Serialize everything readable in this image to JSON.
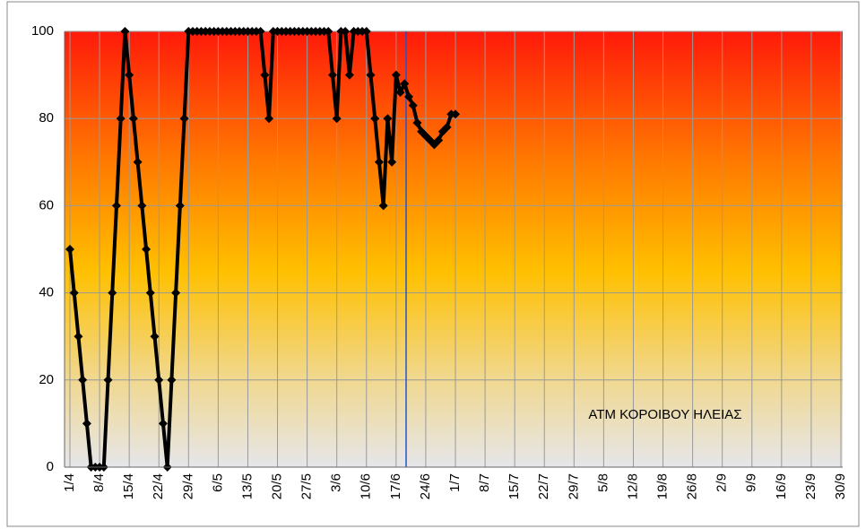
{
  "chart_data": {
    "type": "line",
    "annotation": "ΑΤΜ ΚΟΡΟΙΒΟΥ ΗΛΕΙΑΣ",
    "categories": [
      "1/4",
      null,
      null,
      null,
      null,
      null,
      null,
      "8/4",
      null,
      null,
      null,
      null,
      null,
      null,
      "15/4",
      null,
      null,
      null,
      null,
      null,
      null,
      "22/4",
      null,
      null,
      null,
      null,
      null,
      null,
      "29/4",
      null,
      null,
      null,
      null,
      null,
      null,
      "6/5",
      null,
      null,
      null,
      null,
      null,
      null,
      "13/5",
      null,
      null,
      null,
      null,
      null,
      null,
      "20/5",
      null,
      null,
      null,
      null,
      null,
      null,
      "27/5",
      null,
      null,
      null,
      null,
      null,
      null,
      "3/6",
      null,
      null,
      null,
      null,
      null,
      null,
      "10/6",
      null,
      null,
      null,
      null,
      null,
      null,
      "17/6",
      null,
      null,
      null,
      null,
      null,
      null,
      "24/6",
      null,
      null,
      null,
      null,
      null,
      null,
      "1/7",
      null,
      null,
      null,
      null,
      null,
      null,
      "8/7",
      null,
      null,
      null,
      null,
      null,
      null,
      "15/7",
      null,
      null,
      null,
      null,
      null,
      null,
      "22/7",
      null,
      null,
      null,
      null,
      null,
      null,
      "29/7",
      null,
      null,
      null,
      null,
      null,
      null,
      "5/8",
      null,
      null,
      null,
      null,
      null,
      null,
      "12/8",
      null,
      null,
      null,
      null,
      null,
      null,
      "19/8",
      null,
      null,
      null,
      null,
      null,
      null,
      "26/8",
      null,
      null,
      null,
      null,
      null,
      null,
      "2/9",
      null,
      null,
      null,
      null,
      null,
      null,
      "9/9",
      null,
      null,
      null,
      null,
      null,
      null,
      "16/9",
      null,
      null,
      null,
      null,
      null,
      null,
      "23/9",
      null,
      null,
      null,
      null,
      null,
      null,
      "30/9"
    ],
    "series": [
      {
        "color": "#000000",
        "values": [
          50,
          40,
          30,
          20,
          10,
          0,
          0,
          0,
          0,
          20,
          40,
          60,
          80,
          100,
          90,
          80,
          70,
          60,
          50,
          40,
          30,
          20,
          10,
          0,
          20,
          40,
          60,
          80,
          100,
          100,
          100,
          100,
          100,
          100,
          100,
          100,
          100,
          100,
          100,
          100,
          100,
          100,
          100,
          100,
          100,
          100,
          90,
          80,
          100,
          100,
          100,
          100,
          100,
          100,
          100,
          100,
          100,
          100,
          100,
          100,
          100,
          100,
          90,
          80,
          100,
          100,
          90,
          100,
          100,
          100,
          100,
          90,
          80,
          70,
          60,
          80,
          70,
          90,
          86,
          88,
          85,
          83,
          79,
          77,
          76,
          75,
          74,
          75,
          77,
          78,
          81,
          81,
          null,
          null,
          null,
          null,
          null,
          null,
          null,
          null,
          null,
          null,
          null,
          null,
          null,
          null,
          null,
          null,
          null,
          null,
          null,
          null,
          null,
          null,
          null,
          null,
          null,
          null,
          null,
          null,
          null,
          null,
          null,
          null,
          null,
          null,
          null,
          null,
          null,
          null,
          null,
          null,
          null,
          null,
          null,
          null,
          null,
          null,
          null,
          null,
          null,
          null,
          null,
          null,
          null,
          null,
          null,
          null,
          null,
          null,
          null,
          null,
          null,
          null,
          null,
          null,
          null,
          null,
          null,
          null,
          null,
          null,
          null,
          null,
          null,
          null,
          null,
          null,
          null,
          null,
          null,
          null,
          null,
          null,
          null,
          null,
          null,
          null,
          null,
          null,
          null,
          null,
          null
        ]
      }
    ],
    "ylim": [
      0,
      100
    ],
    "yticks": [
      0,
      20,
      40,
      60,
      80,
      100
    ],
    "grid": true
  }
}
